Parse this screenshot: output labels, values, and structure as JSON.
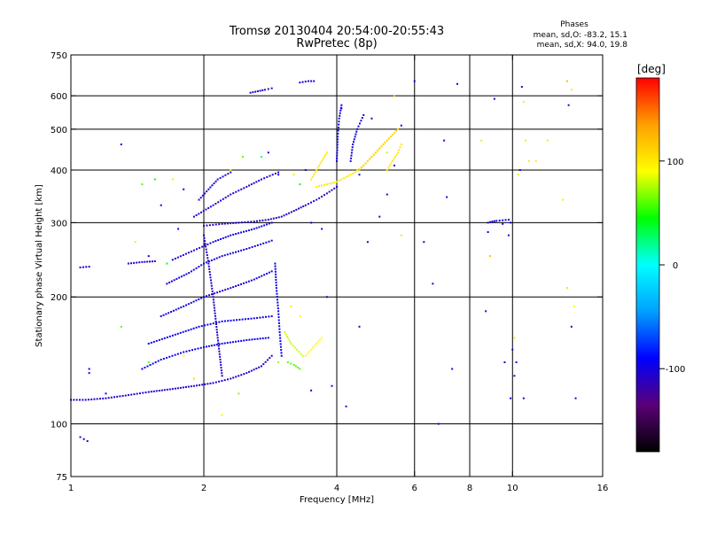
{
  "chart_data": {
    "type": "scatter",
    "title": "Tromsø 20130404 20:54:00-20:55:43",
    "subtitle": "RwPretec (8p)",
    "xlabel": "Frequency [MHz]",
    "ylabel": "Stationary phase Virtual Height [km]",
    "x_scale": "log",
    "y_scale": "log",
    "xlim": [
      1,
      16
    ],
    "ylim": [
      75,
      750
    ],
    "x_ticks": [
      1,
      2,
      4,
      6,
      8,
      10,
      16
    ],
    "x_tick_labels": [
      "1",
      "2",
      "4",
      "6",
      "8",
      "10",
      "16"
    ],
    "y_ticks": [
      75,
      100,
      200,
      300,
      400,
      500,
      600,
      750
    ],
    "y_tick_labels": [
      "75",
      "100",
      "200",
      "300",
      "400",
      "500",
      "600",
      "750"
    ],
    "x_grid": [
      2,
      4,
      6,
      8,
      10
    ],
    "y_grid": [
      100,
      200,
      300,
      400,
      500,
      600
    ],
    "grid": true,
    "stats": {
      "header": "Phases",
      "line_o": "mean, sd,O: -83.2, 15.1",
      "line_x": "mean, sd,X: 94.0, 19.8"
    },
    "colorbar": {
      "label": "[deg]",
      "range": [
        -180,
        180
      ],
      "ticks": [
        100,
        0,
        -100
      ],
      "tick_labels": [
        "100",
        "0",
        "-100"
      ],
      "placement": "right",
      "colors": [
        "#000000",
        "#5a0078",
        "#0000ff",
        "#00a0ff",
        "#00ffff",
        "#00ff00",
        "#ffff00",
        "#ffa000",
        "#ff0000"
      ]
    },
    "series": [
      {
        "type": "trace",
        "phase": -105,
        "points": [
          [
            1.0,
            114
          ],
          [
            1.08,
            114
          ],
          [
            1.2,
            115
          ],
          [
            1.35,
            117
          ],
          [
            1.5,
            119
          ],
          [
            1.7,
            121
          ],
          [
            1.9,
            123
          ],
          [
            2.1,
            125
          ],
          [
            2.3,
            128
          ],
          [
            2.5,
            132
          ],
          [
            2.7,
            137
          ],
          [
            2.85,
            145
          ]
        ]
      },
      {
        "type": "trace",
        "phase": -95,
        "points": [
          [
            1.45,
            135
          ],
          [
            1.6,
            142
          ],
          [
            1.8,
            148
          ],
          [
            2.0,
            152
          ],
          [
            2.2,
            155
          ],
          [
            2.5,
            158
          ],
          [
            2.8,
            160
          ]
        ]
      },
      {
        "type": "trace",
        "phase": -95,
        "points": [
          [
            1.5,
            155
          ],
          [
            1.7,
            162
          ],
          [
            1.95,
            170
          ],
          [
            2.2,
            175
          ],
          [
            2.6,
            178
          ],
          [
            2.85,
            180
          ]
        ]
      },
      {
        "type": "trace",
        "phase": -100,
        "points": [
          [
            1.6,
            180
          ],
          [
            1.8,
            190
          ],
          [
            2.0,
            200
          ],
          [
            2.3,
            210
          ],
          [
            2.6,
            220
          ],
          [
            2.85,
            230
          ]
        ]
      },
      {
        "type": "trace",
        "phase": -100,
        "points": [
          [
            1.65,
            215
          ],
          [
            1.85,
            228
          ],
          [
            2.0,
            240
          ],
          [
            2.2,
            250
          ],
          [
            2.5,
            260
          ],
          [
            2.85,
            272
          ]
        ]
      },
      {
        "type": "trace",
        "phase": -100,
        "points": [
          [
            1.7,
            245
          ],
          [
            1.9,
            258
          ],
          [
            2.1,
            270
          ],
          [
            2.3,
            280
          ],
          [
            2.6,
            290
          ],
          [
            2.85,
            300
          ]
        ]
      },
      {
        "type": "trace",
        "phase": -110,
        "points": [
          [
            2.0,
            295
          ],
          [
            2.2,
            298
          ],
          [
            2.4,
            300
          ],
          [
            2.6,
            302
          ],
          [
            2.8,
            305
          ],
          [
            3.0,
            310
          ],
          [
            3.2,
            320
          ],
          [
            3.4,
            330
          ],
          [
            3.6,
            340
          ],
          [
            3.8,
            352
          ],
          [
            4.0,
            365
          ]
        ]
      },
      {
        "type": "trace",
        "phase": -105,
        "points": [
          [
            1.9,
            310
          ],
          [
            2.1,
            330
          ],
          [
            2.3,
            350
          ],
          [
            2.5,
            365
          ],
          [
            2.7,
            380
          ],
          [
            2.95,
            395
          ]
        ]
      },
      {
        "type": "trace",
        "phase": -100,
        "points": [
          [
            1.95,
            340
          ],
          [
            2.05,
            360
          ],
          [
            2.15,
            380
          ],
          [
            2.3,
            395
          ]
        ]
      },
      {
        "type": "trace",
        "phase": -110,
        "points": [
          [
            2.0,
            280
          ],
          [
            2.05,
            240
          ],
          [
            2.1,
            200
          ],
          [
            2.15,
            160
          ],
          [
            2.2,
            130
          ]
        ]
      },
      {
        "type": "trace",
        "phase": -95,
        "points": [
          [
            2.9,
            240
          ],
          [
            2.92,
            210
          ],
          [
            2.95,
            185
          ],
          [
            2.97,
            165
          ],
          [
            3.0,
            145
          ]
        ]
      },
      {
        "type": "trace",
        "phase": -100,
        "points": [
          [
            4.0,
            420
          ],
          [
            4.02,
            480
          ],
          [
            4.05,
            530
          ],
          [
            4.1,
            570
          ]
        ]
      },
      {
        "type": "trace",
        "phase": -100,
        "points": [
          [
            4.3,
            420
          ],
          [
            4.35,
            460
          ],
          [
            4.45,
            500
          ],
          [
            4.6,
            540
          ]
        ]
      },
      {
        "type": "trace",
        "phase": 100,
        "points": [
          [
            3.6,
            365
          ],
          [
            3.8,
            370
          ],
          [
            4.0,
            375
          ],
          [
            4.2,
            385
          ],
          [
            4.4,
            395
          ],
          [
            4.6,
            410
          ],
          [
            4.8,
            430
          ],
          [
            5.0,
            450
          ],
          [
            5.2,
            470
          ]
        ]
      },
      {
        "type": "trace",
        "phase": 110,
        "points": [
          [
            4.5,
            400
          ],
          [
            4.7,
            420
          ],
          [
            4.9,
            440
          ],
          [
            5.1,
            460
          ],
          [
            5.3,
            480
          ],
          [
            5.5,
            500
          ]
        ]
      },
      {
        "type": "trace",
        "phase": 100,
        "points": [
          [
            3.5,
            380
          ],
          [
            3.6,
            400
          ],
          [
            3.7,
            420
          ],
          [
            3.8,
            440
          ]
        ]
      },
      {
        "type": "trace",
        "phase": 100,
        "points": [
          [
            5.2,
            400
          ],
          [
            5.35,
            420
          ],
          [
            5.5,
            440
          ],
          [
            5.6,
            460
          ]
        ]
      },
      {
        "type": "trace",
        "phase": 80,
        "points": [
          [
            3.05,
            165
          ],
          [
            3.15,
            155
          ],
          [
            3.25,
            150
          ],
          [
            3.35,
            145
          ]
        ]
      },
      {
        "type": "trace",
        "phase": 90,
        "points": [
          [
            3.4,
            145
          ],
          [
            3.5,
            150
          ],
          [
            3.6,
            155
          ],
          [
            3.7,
            160
          ]
        ]
      },
      {
        "type": "trace",
        "phase": 60,
        "points": [
          [
            3.1,
            140
          ],
          [
            3.2,
            138
          ],
          [
            3.3,
            135
          ]
        ]
      },
      {
        "type": "trace",
        "phase": -110,
        "points": [
          [
            1.05,
            93
          ],
          [
            1.07,
            92
          ],
          [
            1.09,
            91
          ]
        ]
      },
      {
        "type": "trace",
        "phase": -110,
        "points": [
          [
            2.55,
            610
          ],
          [
            2.65,
            615
          ],
          [
            2.75,
            620
          ],
          [
            2.85,
            625
          ]
        ]
      },
      {
        "type": "trace",
        "phase": -100,
        "points": [
          [
            3.3,
            645
          ],
          [
            3.45,
            650
          ],
          [
            3.55,
            650
          ]
        ]
      },
      {
        "type": "trace",
        "phase": -105,
        "points": [
          [
            1.35,
            240
          ],
          [
            1.45,
            242
          ],
          [
            1.55,
            243
          ]
        ]
      },
      {
        "type": "trace",
        "phase": -100,
        "points": [
          [
            1.05,
            235
          ],
          [
            1.1,
            236
          ]
        ]
      },
      {
        "type": "trace",
        "phase": -100,
        "points": [
          [
            8.8,
            300
          ],
          [
            9.0,
            302
          ],
          [
            9.2,
            303
          ],
          [
            9.5,
            304
          ],
          [
            9.8,
            305
          ]
        ]
      }
    ],
    "scatter_points": [
      [
        1.3,
        460,
        -100
      ],
      [
        1.45,
        370,
        60
      ],
      [
        1.55,
        380,
        40
      ],
      [
        1.7,
        380,
        100
      ],
      [
        1.8,
        360,
        -95
      ],
      [
        1.6,
        330,
        -100
      ],
      [
        1.75,
        290,
        -90
      ],
      [
        1.4,
        270,
        100
      ],
      [
        1.5,
        250,
        -100
      ],
      [
        1.65,
        240,
        40
      ],
      [
        1.3,
        170,
        60
      ],
      [
        1.8,
        145,
        90
      ],
      [
        1.5,
        140,
        60
      ],
      [
        1.9,
        128,
        110
      ],
      [
        2.4,
        118,
        70
      ],
      [
        2.2,
        105,
        100
      ],
      [
        1.2,
        118,
        -100
      ],
      [
        1.1,
        135,
        -100
      ],
      [
        1.1,
        132,
        -100
      ],
      [
        2.3,
        400,
        100
      ],
      [
        2.45,
        430,
        60
      ],
      [
        2.8,
        440,
        -100
      ],
      [
        2.7,
        430,
        20
      ],
      [
        2.95,
        390,
        -100
      ],
      [
        3.2,
        390,
        100
      ],
      [
        3.3,
        370,
        40
      ],
      [
        3.4,
        400,
        -100
      ],
      [
        3.5,
        300,
        -100
      ],
      [
        3.7,
        290,
        -100
      ],
      [
        3.8,
        200,
        -100
      ],
      [
        3.3,
        180,
        90
      ],
      [
        3.15,
        190,
        100
      ],
      [
        2.95,
        140,
        70
      ],
      [
        3.5,
        120,
        -100
      ],
      [
        3.9,
        123,
        -100
      ],
      [
        4.2,
        110,
        -100
      ],
      [
        4.5,
        170,
        -100
      ],
      [
        4.7,
        270,
        -100
      ],
      [
        5.0,
        310,
        -100
      ],
      [
        4.8,
        530,
        -100
      ],
      [
        5.2,
        440,
        80
      ],
      [
        5.4,
        410,
        -100
      ],
      [
        5.6,
        280,
        100
      ],
      [
        5.2,
        350,
        -100
      ],
      [
        4.1,
        560,
        -100
      ],
      [
        5.6,
        510,
        -100
      ],
      [
        5.4,
        600,
        120
      ],
      [
        4.5,
        390,
        -100
      ],
      [
        6.0,
        650,
        -100
      ],
      [
        6.3,
        270,
        -100
      ],
      [
        6.6,
        215,
        -100
      ],
      [
        7.0,
        470,
        -100
      ],
      [
        7.1,
        345,
        -100
      ],
      [
        7.5,
        640,
        -100
      ],
      [
        7.3,
        135,
        -100
      ],
      [
        6.8,
        100,
        -100
      ],
      [
        8.8,
        285,
        -100
      ],
      [
        8.9,
        250,
        120
      ],
      [
        9.1,
        590,
        -100
      ],
      [
        9.5,
        298,
        -100
      ],
      [
        9.8,
        280,
        -100
      ],
      [
        9.9,
        115,
        -100
      ],
      [
        10.1,
        160,
        100
      ],
      [
        10.3,
        390,
        100
      ],
      [
        10.7,
        470,
        100
      ],
      [
        10.5,
        630,
        -100
      ],
      [
        10.9,
        420,
        100
      ],
      [
        11.3,
        420,
        100
      ],
      [
        10.2,
        140,
        -100
      ],
      [
        10.0,
        150,
        -100
      ],
      [
        10.1,
        130,
        -100
      ],
      [
        10.6,
        115,
        -100
      ],
      [
        12.0,
        470,
        100
      ],
      [
        13.3,
        650,
        120
      ],
      [
        13.6,
        620,
        100
      ],
      [
        13.9,
        115,
        -100
      ],
      [
        13.4,
        570,
        -100
      ],
      [
        13.3,
        210,
        80
      ],
      [
        13.6,
        170,
        -100
      ],
      [
        10.4,
        400,
        -100
      ],
      [
        10.6,
        580,
        100
      ],
      [
        9.6,
        140,
        -100
      ],
      [
        8.7,
        185,
        -100
      ],
      [
        9.9,
        300,
        -100
      ],
      [
        8.5,
        470,
        100
      ],
      [
        13.0,
        340,
        100
      ],
      [
        13.8,
        190,
        90
      ]
    ]
  }
}
